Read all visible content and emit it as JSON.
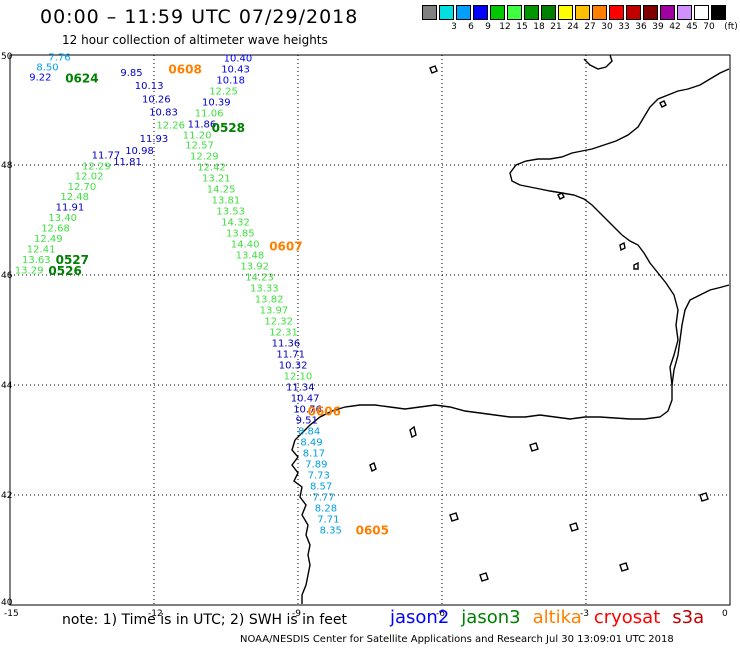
{
  "header": {
    "title": "00:00 – 11:59 UTC 07/29/2018",
    "subtitle": "12 hour collection of altimeter wave heights"
  },
  "scale": {
    "unit": "(ft)",
    "bins": [
      {
        "label": "",
        "color": "#808080"
      },
      {
        "label": "3",
        "color": "#00e0e0"
      },
      {
        "label": "6",
        "color": "#00a0ff"
      },
      {
        "label": "9",
        "color": "#0000ff"
      },
      {
        "label": "12",
        "color": "#00c800"
      },
      {
        "label": "15",
        "color": "#40ff40"
      },
      {
        "label": "18",
        "color": "#009600"
      },
      {
        "label": "21",
        "color": "#008000"
      },
      {
        "label": "24",
        "color": "#ffff00"
      },
      {
        "label": "27",
        "color": "#ffc000"
      },
      {
        "label": "30",
        "color": "#ff8000"
      },
      {
        "label": "33",
        "color": "#ff0000"
      },
      {
        "label": "36",
        "color": "#c00000"
      },
      {
        "label": "39",
        "color": "#800000"
      },
      {
        "label": "42",
        "color": "#a000a0"
      },
      {
        "label": "45",
        "color": "#d090ff"
      },
      {
        "label": "70",
        "color": "#ffffff"
      },
      {
        "label": "",
        "color": "#000000"
      }
    ]
  },
  "map": {
    "lat_range": [
      40,
      50
    ],
    "lon_range": [
      -15,
      0
    ],
    "lat_labels": [
      "50",
      "48",
      "46",
      "44",
      "42",
      "40"
    ],
    "lon_labels": [
      "-15",
      "-12",
      "-9",
      "-6",
      "-3",
      "0"
    ],
    "tracks": [
      {
        "sat": "jason3_west",
        "points": [
          {
            "lat": 49.9,
            "lon": -14.2,
            "v": "7.76",
            "c": "#00a0ff"
          },
          {
            "lat": 49.72,
            "lon": -14.45,
            "v": "8.50",
            "c": "#00a0ff"
          },
          {
            "lat": 49.54,
            "lon": -14.6,
            "v": "9.22",
            "c": "#0000ff"
          },
          {
            "lat": 48.12,
            "lon": -13.3,
            "v": "11.77",
            "c": "#0000c0"
          },
          {
            "lat": 47.92,
            "lon": -13.5,
            "v": "12.29",
            "c": "#40e040"
          },
          {
            "lat": 47.74,
            "lon": -13.65,
            "v": "12.02",
            "c": "#40e040"
          },
          {
            "lat": 47.55,
            "lon": -13.8,
            "v": "12.70",
            "c": "#40e040"
          },
          {
            "lat": 47.36,
            "lon": -13.95,
            "v": "12.48",
            "c": "#40e040"
          },
          {
            "lat": 47.17,
            "lon": -14.05,
            "v": "11.91",
            "c": "#0000c0"
          },
          {
            "lat": 46.98,
            "lon": -14.2,
            "v": "13.40",
            "c": "#40e040"
          },
          {
            "lat": 46.79,
            "lon": -14.35,
            "v": "12.68",
            "c": "#40e040"
          },
          {
            "lat": 46.6,
            "lon": -14.5,
            "v": "12.49",
            "c": "#40e040"
          },
          {
            "lat": 46.41,
            "lon": -14.65,
            "v": "12.41",
            "c": "#40e040"
          },
          {
            "lat": 46.22,
            "lon": -14.75,
            "v": "13.63",
            "c": "#40e040"
          },
          {
            "lat": 46.03,
            "lon": -14.9,
            "v": "13.29",
            "c": "#40e040"
          }
        ]
      },
      {
        "sat": "jason2_main",
        "points": [
          {
            "lat": 49.88,
            "lon": -10.55,
            "v": "10.40",
            "c": "#0000ff"
          },
          {
            "lat": 49.68,
            "lon": -10.6,
            "v": "10.43",
            "c": "#0000ff"
          },
          {
            "lat": 49.48,
            "lon": -10.7,
            "v": "10.18",
            "c": "#0000ff"
          },
          {
            "lat": 49.28,
            "lon": -10.85,
            "v": "12.25",
            "c": "#40e040"
          },
          {
            "lat": 49.08,
            "lon": -11.0,
            "v": "10.39",
            "c": "#0000c0"
          },
          {
            "lat": 48.88,
            "lon": -11.15,
            "v": "11.06",
            "c": "#40e040"
          },
          {
            "lat": 48.68,
            "lon": -11.3,
            "v": "11.86",
            "c": "#0000c0"
          },
          {
            "lat": 48.48,
            "lon": -11.4,
            "v": "11.20",
            "c": "#40e040"
          },
          {
            "lat": 48.3,
            "lon": -11.35,
            "v": "12.57",
            "c": "#40e040"
          },
          {
            "lat": 48.1,
            "lon": -11.25,
            "v": "12.29",
            "c": "#40e040"
          },
          {
            "lat": 47.9,
            "lon": -11.1,
            "v": "12.42",
            "c": "#40e040"
          },
          {
            "lat": 47.7,
            "lon": -11.0,
            "v": "13.21",
            "c": "#40e040"
          },
          {
            "lat": 47.5,
            "lon": -10.9,
            "v": "14.25",
            "c": "#40e040"
          },
          {
            "lat": 47.3,
            "lon": -10.8,
            "v": "13.81",
            "c": "#40e040"
          },
          {
            "lat": 47.1,
            "lon": -10.7,
            "v": "13.53",
            "c": "#40e040"
          },
          {
            "lat": 46.9,
            "lon": -10.6,
            "v": "14.32",
            "c": "#40e040"
          },
          {
            "lat": 46.7,
            "lon": -10.5,
            "v": "13.85",
            "c": "#40e040"
          },
          {
            "lat": 46.5,
            "lon": -10.4,
            "v": "14.40",
            "c": "#40e040"
          },
          {
            "lat": 46.3,
            "lon": -10.3,
            "v": "13.48",
            "c": "#40e040"
          },
          {
            "lat": 46.1,
            "lon": -10.2,
            "v": "13.92",
            "c": "#40e040"
          },
          {
            "lat": 45.9,
            "lon": -10.1,
            "v": "14.23",
            "c": "#40e040"
          },
          {
            "lat": 45.7,
            "lon": -10.0,
            "v": "13.33",
            "c": "#40e040"
          },
          {
            "lat": 45.5,
            "lon": -9.9,
            "v": "13.82",
            "c": "#40e040"
          },
          {
            "lat": 45.3,
            "lon": -9.8,
            "v": "13.97",
            "c": "#40e040"
          },
          {
            "lat": 45.1,
            "lon": -9.7,
            "v": "12.32",
            "c": "#40e040"
          },
          {
            "lat": 44.9,
            "lon": -9.6,
            "v": "12.31",
            "c": "#40e040"
          },
          {
            "lat": 44.7,
            "lon": -9.55,
            "v": "11.36",
            "c": "#0000c0"
          },
          {
            "lat": 44.5,
            "lon": -9.45,
            "v": "11.71",
            "c": "#0000c0"
          },
          {
            "lat": 44.3,
            "lon": -9.4,
            "v": "10.32",
            "c": "#0000c0"
          },
          {
            "lat": 44.1,
            "lon": -9.3,
            "v": "12.10",
            "c": "#40e040"
          },
          {
            "lat": 43.9,
            "lon": -9.25,
            "v": "11.34",
            "c": "#0000c0"
          },
          {
            "lat": 43.7,
            "lon": -9.15,
            "v": "10.47",
            "c": "#0000c0"
          },
          {
            "lat": 43.5,
            "lon": -9.1,
            "v": "10.76",
            "c": "#0000c0"
          },
          {
            "lat": 43.3,
            "lon": -9.05,
            "v": "9.51",
            "c": "#0000c0"
          },
          {
            "lat": 43.1,
            "lon": -9.0,
            "v": "8.84",
            "c": "#00a0e0"
          },
          {
            "lat": 42.9,
            "lon": -8.95,
            "v": "8.49",
            "c": "#00a0e0"
          },
          {
            "lat": 42.7,
            "lon": -8.9,
            "v": "8.17",
            "c": "#00a0e0"
          },
          {
            "lat": 42.5,
            "lon": -8.85,
            "v": "7.89",
            "c": "#00a0e0"
          },
          {
            "lat": 42.3,
            "lon": -8.8,
            "v": "7.73",
            "c": "#00a0e0"
          },
          {
            "lat": 42.1,
            "lon": -8.75,
            "v": "8.57",
            "c": "#00a0e0"
          },
          {
            "lat": 41.9,
            "lon": -8.7,
            "v": "7.77",
            "c": "#00a0e0"
          },
          {
            "lat": 41.7,
            "lon": -8.65,
            "v": "8.28",
            "c": "#00a0e0"
          },
          {
            "lat": 41.5,
            "lon": -8.6,
            "v": "7.71",
            "c": "#00a0e0"
          },
          {
            "lat": 41.3,
            "lon": -8.55,
            "v": "8.35",
            "c": "#00a0e0"
          }
        ]
      },
      {
        "sat": "jason2_upper",
        "points": [
          {
            "lat": 49.62,
            "lon": -12.7,
            "v": "9.85",
            "c": "#0000c0"
          },
          {
            "lat": 49.38,
            "lon": -12.4,
            "v": "10.13",
            "c": "#0000c0"
          },
          {
            "lat": 49.14,
            "lon": -12.25,
            "v": "10.26",
            "c": "#0000c0"
          },
          {
            "lat": 48.9,
            "lon": -12.1,
            "v": "10.83",
            "c": "#0000c0"
          },
          {
            "lat": 48.66,
            "lon": -11.95,
            "v": "12.26",
            "c": "#40e040"
          },
          {
            "lat": 48.42,
            "lon": -12.3,
            "v": "11.93",
            "c": "#0000c0"
          },
          {
            "lat": 48.2,
            "lon": -12.6,
            "v": "10.98",
            "c": "#0000c0"
          },
          {
            "lat": 48.0,
            "lon": -12.85,
            "v": "11.81",
            "c": "#0000c0"
          }
        ]
      }
    ],
    "time_labels": [
      {
        "text": "0624",
        "lat": 49.5,
        "lon": -13.85,
        "c": "#008000"
      },
      {
        "text": "0608",
        "lat": 49.66,
        "lon": -11.7,
        "c": "#ff8000"
      },
      {
        "text": "0528",
        "lat": 48.6,
        "lon": -10.8,
        "c": "#008000"
      },
      {
        "text": "0607",
        "lat": 46.45,
        "lon": -9.6,
        "c": "#ff8000"
      },
      {
        "text": "0527",
        "lat": 46.2,
        "lon": -14.05,
        "c": "#008000"
      },
      {
        "text": "0526",
        "lat": 46.0,
        "lon": -14.2,
        "c": "#008000"
      },
      {
        "text": "0606",
        "lat": 43.45,
        "lon": -8.8,
        "c": "#ff8000"
      },
      {
        "text": "0605",
        "lat": 41.28,
        "lon": -7.8,
        "c": "#ff8000"
      }
    ]
  },
  "note": "note:  1) Time is in UTC;  2) SWH is in feet",
  "satellites": [
    {
      "name": "jason2",
      "color": "#0000ff"
    },
    {
      "name": "jason3",
      "color": "#008000"
    },
    {
      "name": "altika",
      "color": "#ff8000"
    },
    {
      "name": "cryosat",
      "color": "#ff0000"
    },
    {
      "name": "s3a",
      "color": "#c00000"
    }
  ],
  "footer": "NOAA/NESDIS Center for Satellite Applications and Research     Jul 30 13:09:01 UTC 2018"
}
